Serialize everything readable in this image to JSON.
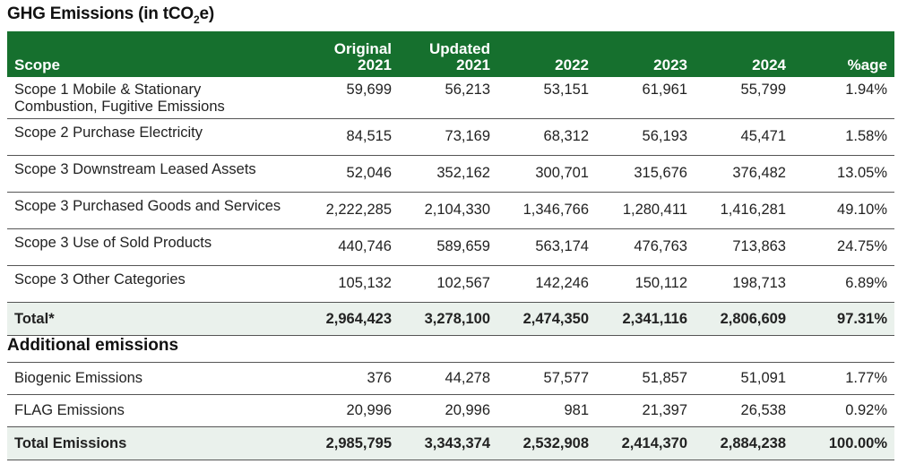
{
  "title_main": "GHG Emissions (in tCO",
  "title_sub": "2",
  "title_end": "e)",
  "header": {
    "scope": "Scope",
    "col1_line1": "Original",
    "col1_line2": "2021",
    "col2_line1": "Updated",
    "col2_line2": "2021",
    "col3": "2022",
    "col4": "2023",
    "col5": "2024",
    "col6": "%age"
  },
  "rows": [
    {
      "label_line1": "Scope 1 Mobile & Stationary",
      "label_line2": "Combustion, Fugitive Emissions",
      "v": [
        "59,699",
        "56,213",
        "53,151",
        "61,961",
        "55,799",
        "1.94%"
      ]
    },
    {
      "label": "Scope 2 Purchase Electricity",
      "v": [
        "84,515",
        "73,169",
        "68,312",
        "56,193",
        "45,471",
        "1.58%"
      ]
    },
    {
      "label": "Scope 3 Downstream Leased Assets",
      "v": [
        "52,046",
        "352,162",
        "300,701",
        "315,676",
        "376,482",
        "13.05%"
      ]
    },
    {
      "label": "Scope 3 Purchased Goods and Services",
      "v": [
        "2,222,285",
        "2,104,330",
        "1,346,766",
        "1,280,411",
        "1,416,281",
        "49.10%"
      ]
    },
    {
      "label": "Scope 3 Use of Sold Products",
      "v": [
        "440,746",
        "589,659",
        "563,174",
        "476,763",
        "713,863",
        "24.75%"
      ]
    },
    {
      "label": "Scope 3 Other Categories",
      "v": [
        "105,132",
        "102,567",
        "142,246",
        "150,112",
        "198,713",
        "6.89%"
      ]
    }
  ],
  "total": {
    "label": "Total*",
    "v": [
      "2,964,423",
      "3,278,100",
      "2,474,350",
      "2,341,116",
      "2,806,609",
      "97.31%"
    ]
  },
  "additional_title": "Additional emissions",
  "additional_rows": [
    {
      "label": "Biogenic Emissions",
      "v": [
        "376",
        "44,278",
        "57,577",
        "51,857",
        "51,091",
        "1.77%"
      ]
    },
    {
      "label": "FLAG Emissions",
      "v": [
        "20,996",
        "20,996",
        "981",
        "21,397",
        "26,538",
        "0.92%"
      ]
    }
  ],
  "grand_total": {
    "label": "Total Emissions",
    "v": [
      "2,985,795",
      "3,343,374",
      "2,532,908",
      "2,414,370",
      "2,884,238",
      "100.00%"
    ]
  },
  "colors": {
    "header_green": "#16702e",
    "total_row_bg": "#eaf1ec"
  }
}
